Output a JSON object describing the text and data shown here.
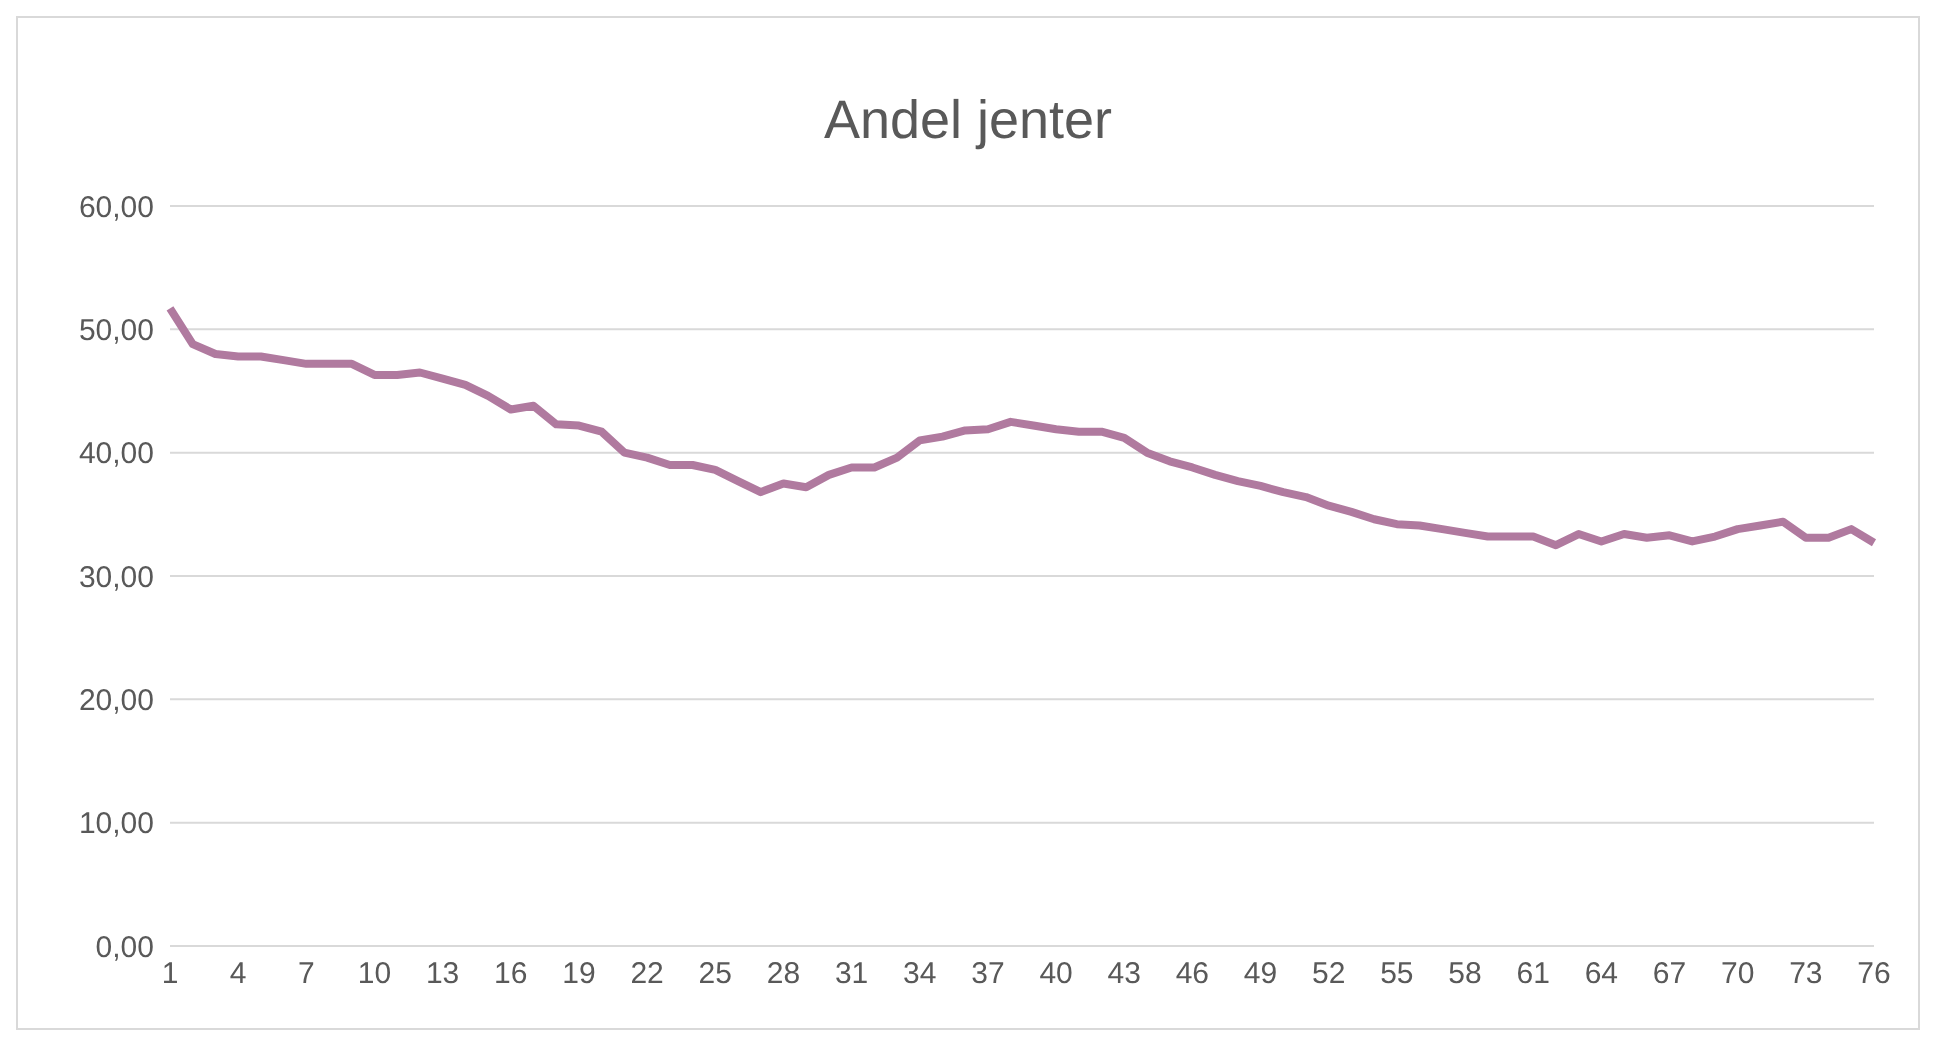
{
  "chart_data": {
    "type": "line",
    "title": "Andel jenter",
    "categories": [
      "1",
      null,
      null,
      "4",
      null,
      null,
      "7",
      null,
      null,
      "10",
      null,
      null,
      "13",
      null,
      null,
      "16",
      null,
      null,
      "19",
      null,
      null,
      "22",
      null,
      null,
      "25",
      null,
      null,
      "28",
      null,
      null,
      "31",
      null,
      null,
      "34",
      null,
      null,
      "37",
      null,
      null,
      "40",
      null,
      null,
      "43",
      null,
      null,
      "46",
      null,
      null,
      "49",
      null,
      null,
      "52",
      null,
      null,
      "55",
      null,
      null,
      "58",
      null,
      null,
      "61",
      null,
      null,
      "64",
      null,
      null,
      "67",
      null,
      null,
      "70",
      null,
      null,
      "73",
      null,
      null,
      "76"
    ],
    "series": [
      {
        "color": "#b07a9f",
        "values": [
          51.7,
          48.8,
          48,
          47.8,
          47.8,
          47.5,
          47.2,
          47.2,
          47.2,
          46.3,
          46.3,
          46.5,
          46,
          45.5,
          44.6,
          43.5,
          43.8,
          42.3,
          42.2,
          41.7,
          40,
          39.6,
          39,
          39,
          38.6,
          37.7,
          36.8,
          37.5,
          37.2,
          38.2,
          38.8,
          38.8,
          39.6,
          41,
          41.3,
          41.8,
          41.9,
          42.5,
          42.2,
          41.9,
          41.7,
          41.7,
          41.2,
          40,
          39.3,
          38.8,
          38.2,
          37.7,
          37.3,
          36.8,
          36.4,
          35.7,
          35.2,
          34.6,
          34.2,
          34.1,
          33.8,
          33.5,
          33.2,
          33.2,
          33.2,
          32.5,
          33.4,
          32.8,
          33.4,
          33.1,
          33.3,
          32.8,
          33.2,
          33.8,
          34.1,
          34.4,
          33.1,
          33.1,
          33.8,
          32.7
        ]
      }
    ],
    "ylim": [
      0,
      60
    ],
    "yticks": [
      {
        "value": 0,
        "label": "0,00"
      },
      {
        "value": 10,
        "label": "10,00"
      },
      {
        "value": 20,
        "label": "20,00"
      },
      {
        "value": 30,
        "label": "30,00"
      },
      {
        "value": 40,
        "label": "40,00"
      },
      {
        "value": 50,
        "label": "50,00"
      },
      {
        "value": 60,
        "label": "60,00"
      }
    ],
    "grid": "y",
    "legend": false,
    "marker": "none",
    "line_style": "solid"
  }
}
